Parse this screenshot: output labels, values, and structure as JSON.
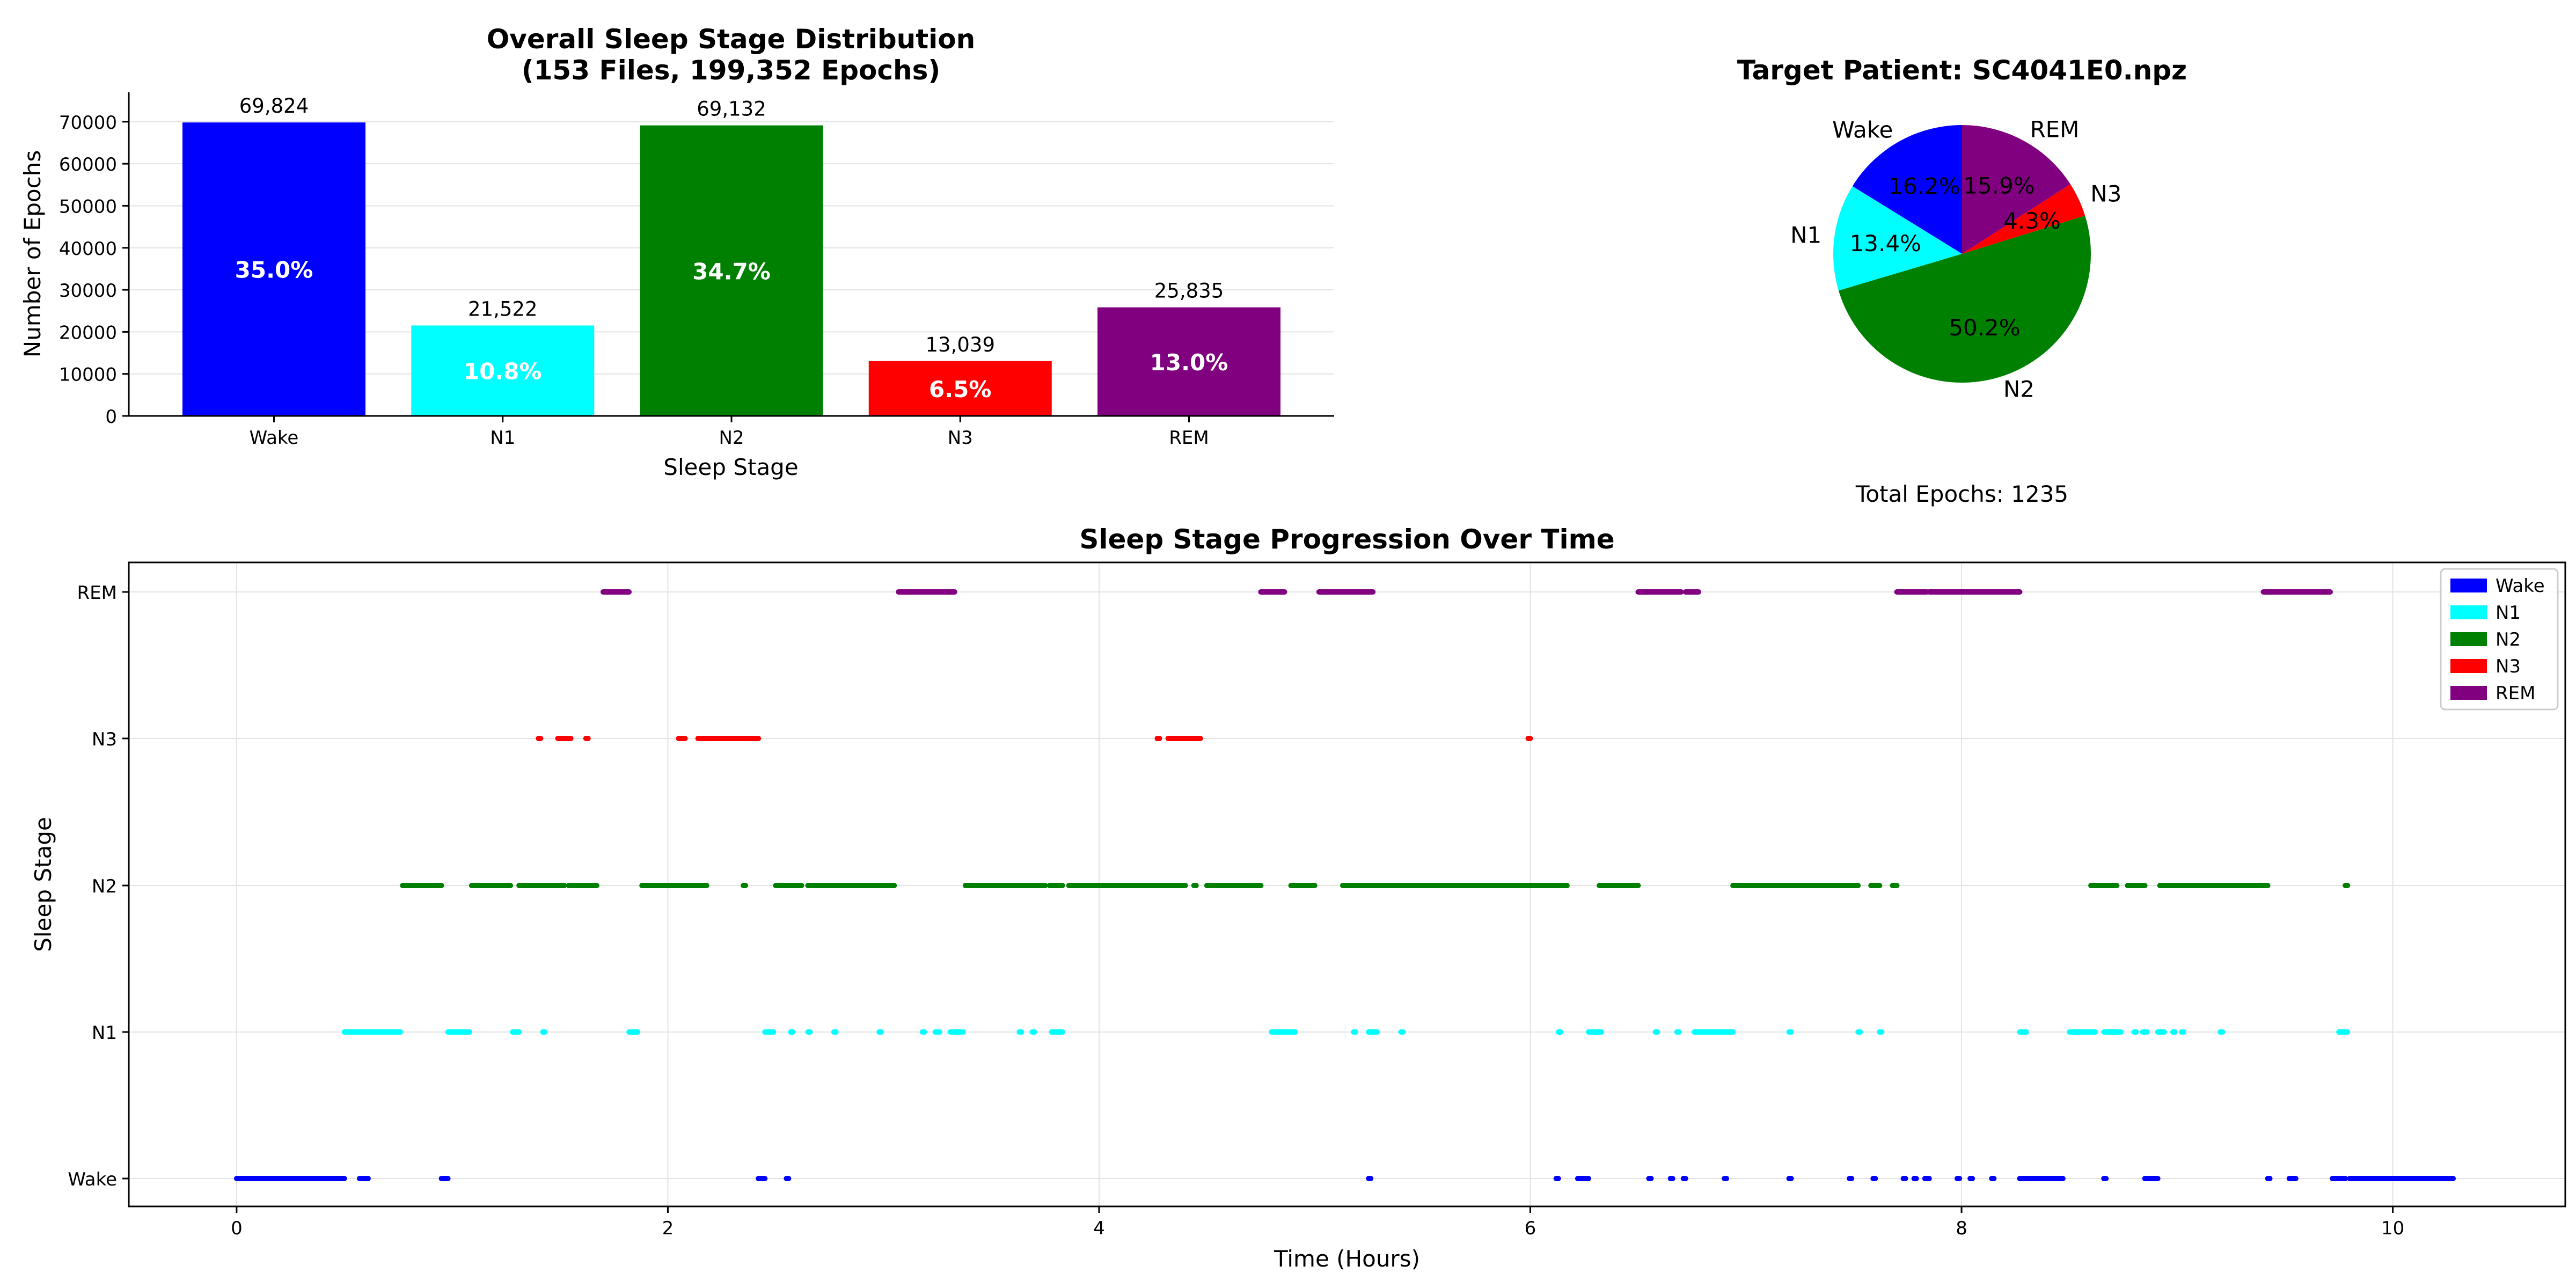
{
  "chart_data": [
    {
      "type": "bar",
      "title_line1": "Overall Sleep Stage Distribution",
      "title_line2": "(153 Files, 199,352 Epochs)",
      "xlabel": "Sleep Stage",
      "ylabel": "Number of Epochs",
      "ylim": [
        0,
        77000
      ],
      "yticks": [
        "0",
        "10000",
        "20000",
        "30000",
        "40000",
        "50000",
        "60000",
        "70000"
      ],
      "grid": "y",
      "categories": [
        "Wake",
        "N1",
        "N2",
        "N3",
        "REM"
      ],
      "values": [
        69824,
        21522,
        69132,
        13039,
        25835
      ],
      "value_labels": [
        "69,824",
        "21,522",
        "69,132",
        "13,039",
        "25,835"
      ],
      "percent_labels": [
        "35.0%",
        "10.8%",
        "34.7%",
        "6.5%",
        "13.0%"
      ],
      "colors": [
        "#0000ff",
        "#00ffff",
        "#008000",
        "#ff0000",
        "#800080"
      ]
    },
    {
      "type": "pie",
      "title": "Target Patient: SC4041E0.npz",
      "labels": [
        "Wake",
        "N1",
        "N2",
        "N3",
        "REM"
      ],
      "values": [
        16.2,
        13.4,
        50.2,
        4.3,
        15.9
      ],
      "percent_labels": [
        "16.2%",
        "13.4%",
        "50.2%",
        "4.3%",
        "15.9%"
      ],
      "colors": [
        "#0000ff",
        "#00ffff",
        "#008000",
        "#ff0000",
        "#800080"
      ],
      "start_angle_deg": 90,
      "direction": "counterclockwise",
      "footer": "Total Epochs: 1235"
    },
    {
      "type": "scatter",
      "title": "Sleep Stage Progression Over Time",
      "xlabel": "Time (Hours)",
      "ylabel": "Sleep Stage",
      "xlim": [
        -0.5,
        10.8
      ],
      "xticks": [
        "0",
        "2",
        "4",
        "6",
        "8",
        "10"
      ],
      "ycategories": [
        "Wake",
        "N1",
        "N2",
        "N3",
        "REM"
      ],
      "grid": "both",
      "legend_position": "top-right",
      "series": [
        {
          "name": "Wake",
          "color": "#0000ff",
          "segments": [
            [
              0.0,
              0.5
            ],
            [
              0.57,
              0.61
            ],
            [
              0.95,
              0.98
            ],
            [
              2.42,
              2.45
            ],
            [
              2.55,
              2.56
            ],
            [
              5.25,
              5.26
            ],
            [
              6.12,
              6.13
            ],
            [
              6.22,
              6.27
            ],
            [
              6.55,
              6.56
            ],
            [
              6.65,
              6.66
            ],
            [
              6.71,
              6.72
            ],
            [
              6.9,
              6.91
            ],
            [
              7.2,
              7.21
            ],
            [
              7.48,
              7.49
            ],
            [
              7.59,
              7.6
            ],
            [
              7.73,
              7.74
            ],
            [
              7.78,
              7.79
            ],
            [
              7.83,
              7.85
            ],
            [
              7.98,
              7.99
            ],
            [
              8.04,
              8.05
            ],
            [
              8.14,
              8.15
            ],
            [
              8.27,
              8.47
            ],
            [
              8.66,
              8.67
            ],
            [
              8.85,
              8.91
            ],
            [
              9.42,
              9.43
            ],
            [
              9.52,
              9.55
            ],
            [
              9.72,
              9.78
            ],
            [
              9.8,
              10.28
            ]
          ]
        },
        {
          "name": "N1",
          "color": "#00ffff",
          "segments": [
            [
              0.5,
              0.76
            ],
            [
              0.98,
              1.08
            ],
            [
              1.28,
              1.31
            ],
            [
              1.42,
              1.43
            ],
            [
              1.82,
              1.86
            ],
            [
              2.45,
              2.49
            ],
            [
              2.57,
              2.58
            ],
            [
              2.65,
              2.66
            ],
            [
              2.77,
              2.78
            ],
            [
              2.98,
              2.99
            ],
            [
              3.18,
              3.19
            ],
            [
              3.24,
              3.26
            ],
            [
              3.31,
              3.37
            ],
            [
              3.63,
              3.64
            ],
            [
              3.69,
              3.7
            ],
            [
              3.78,
              3.83
            ],
            [
              4.8,
              4.91
            ],
            [
              5.18,
              5.19
            ],
            [
              5.25,
              5.29
            ],
            [
              5.4,
              5.41
            ],
            [
              6.13,
              6.14
            ],
            [
              6.27,
              6.33
            ],
            [
              6.58,
              6.59
            ],
            [
              6.68,
              6.69
            ],
            [
              6.76,
              6.94
            ],
            [
              7.2,
              7.21
            ],
            [
              7.52,
              7.53
            ],
            [
              7.62,
              7.63
            ],
            [
              8.27,
              8.3
            ],
            [
              8.5,
              8.62
            ],
            [
              8.66,
              8.74
            ],
            [
              8.8,
              8.81
            ],
            [
              8.84,
              8.86
            ],
            [
              8.91,
              8.94
            ],
            [
              8.98,
              8.99
            ],
            [
              9.02,
              9.03
            ],
            [
              9.2,
              9.21
            ],
            [
              9.75,
              9.79
            ]
          ]
        },
        {
          "name": "N2",
          "color": "#008000",
          "segments": [
            [
              0.77,
              0.95
            ],
            [
              1.09,
              1.27
            ],
            [
              1.31,
              1.52
            ],
            [
              1.54,
              1.67
            ],
            [
              1.88,
              2.18
            ],
            [
              2.35,
              2.36
            ],
            [
              2.5,
              2.62
            ],
            [
              2.65,
              3.05
            ],
            [
              3.38,
              3.75
            ],
            [
              3.77,
              3.83
            ],
            [
              3.86,
              4.4
            ],
            [
              4.44,
              4.45
            ],
            [
              4.5,
              4.75
            ],
            [
              4.89,
              5.0
            ],
            [
              5.13,
              6.17
            ],
            [
              6.32,
              6.5
            ],
            [
              6.94,
              7.52
            ],
            [
              7.58,
              7.62
            ],
            [
              7.68,
              7.7
            ],
            [
              8.6,
              8.72
            ],
            [
              8.77,
              8.85
            ],
            [
              8.92,
              9.42
            ],
            [
              9.78,
              9.79
            ]
          ]
        },
        {
          "name": "N3",
          "color": "#ff0000",
          "segments": [
            [
              1.4,
              1.41
            ],
            [
              1.49,
              1.55
            ],
            [
              1.62,
              1.63
            ],
            [
              2.05,
              2.08
            ],
            [
              2.14,
              2.42
            ],
            [
              4.27,
              4.28
            ],
            [
              4.32,
              4.47
            ],
            [
              5.99,
              6.0
            ]
          ]
        },
        {
          "name": "REM",
          "color": "#800080",
          "segments": [
            [
              1.7,
              1.82
            ],
            [
              3.07,
              3.33
            ],
            [
              4.75,
              4.86
            ],
            [
              5.02,
              5.27
            ],
            [
              6.5,
              6.7
            ],
            [
              6.72,
              6.78
            ],
            [
              7.7,
              7.84
            ],
            [
              7.85,
              8.27
            ],
            [
              9.4,
              9.71
            ]
          ]
        }
      ]
    }
  ]
}
